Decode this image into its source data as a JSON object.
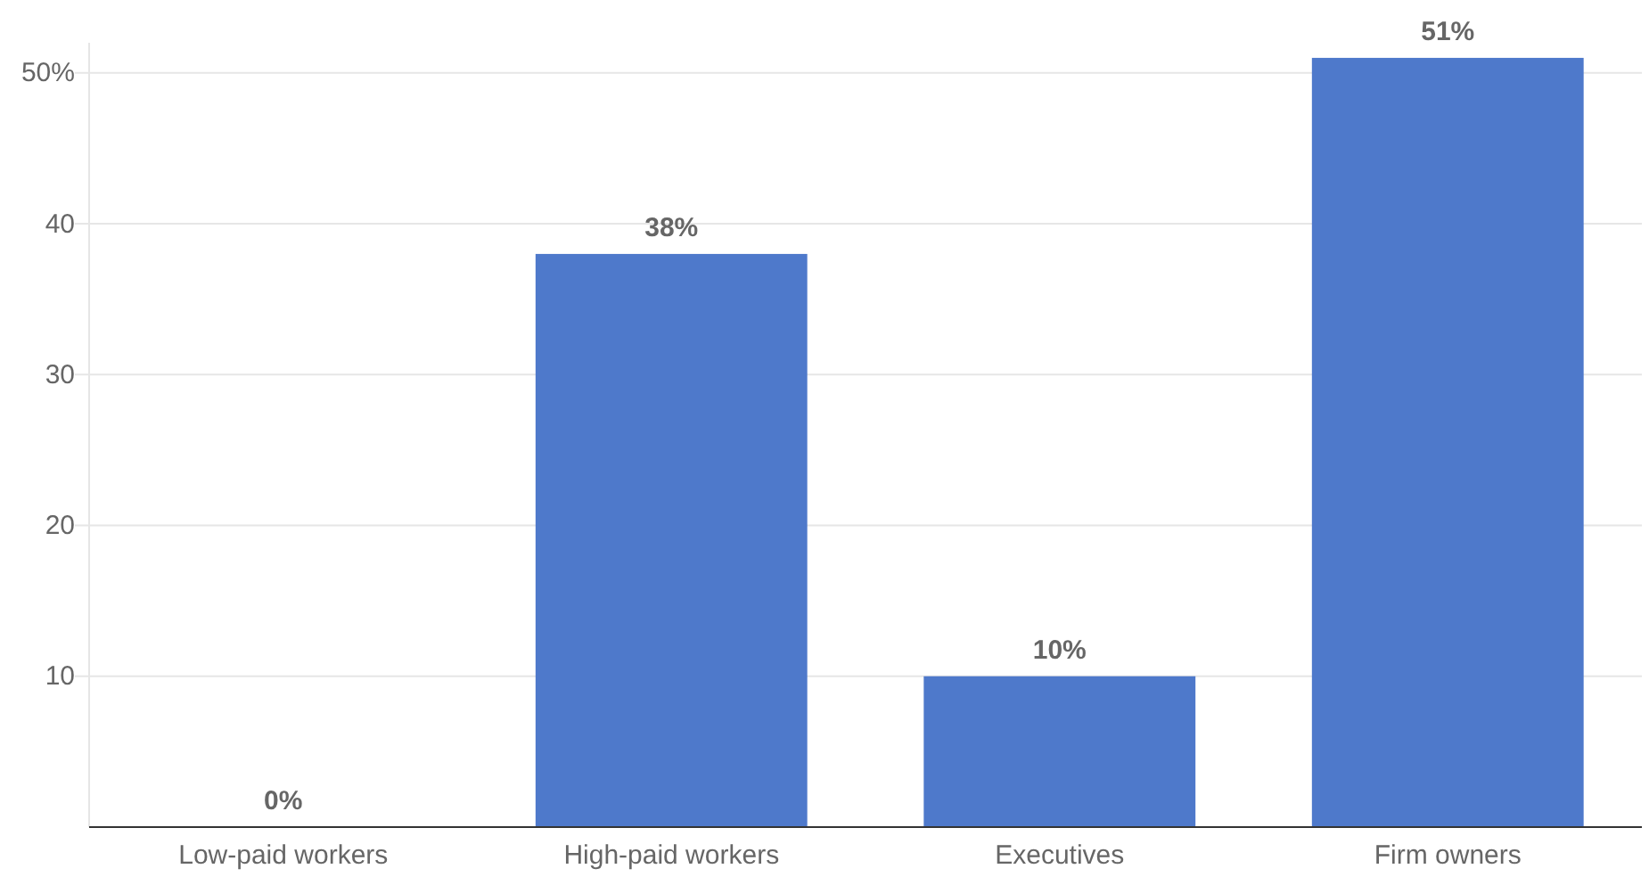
{
  "chart_data": {
    "type": "bar",
    "categories": [
      "Low-paid workers",
      "High-paid workers",
      "Executives",
      "Firm owners"
    ],
    "values": [
      0,
      38,
      10,
      51
    ],
    "value_labels": [
      "0%",
      "38%",
      "10%",
      "51%"
    ],
    "color": "#4e79cb",
    "ylim": [
      0,
      52
    ],
    "yticks": [
      {
        "value": 10,
        "label": "10"
      },
      {
        "value": 20,
        "label": "20"
      },
      {
        "value": 30,
        "label": "30"
      },
      {
        "value": 40,
        "label": "40"
      },
      {
        "value": 50,
        "label": "50%"
      }
    ],
    "grid": "y"
  }
}
